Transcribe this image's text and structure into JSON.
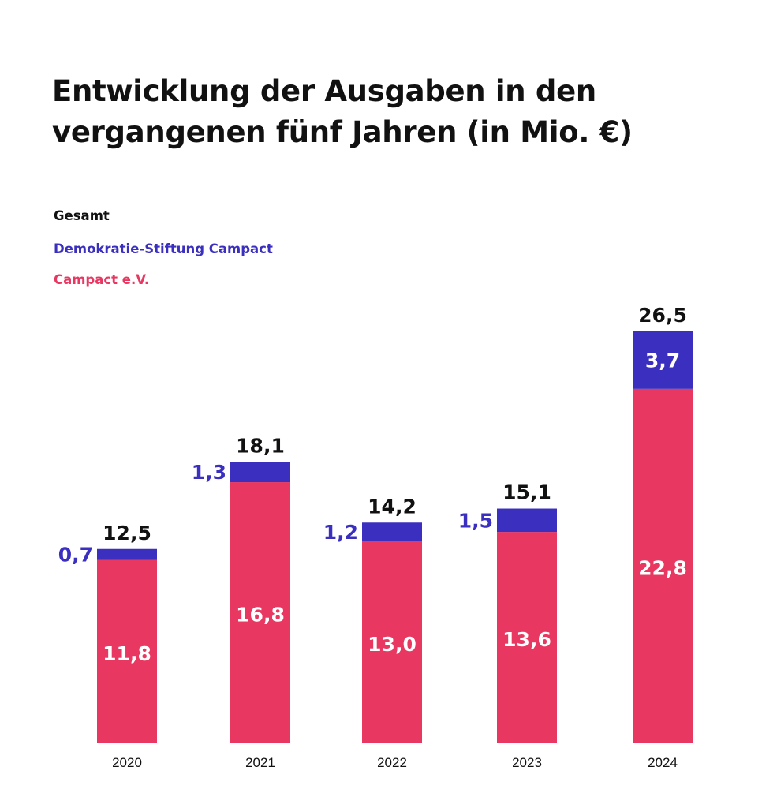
{
  "title_line1": "Entwicklung der Ausgaben in den",
  "title_line2": "vergangenen fünf Jahren (in Mio. €)",
  "legend": [
    {
      "label": "Gesamt",
      "color": "#111111"
    },
    {
      "label": "Demokratie-Stiftung Campact",
      "color": "#3a2fbe"
    },
    {
      "label": "Campact e.V.",
      "color": "#e83862"
    }
  ],
  "chart_data": {
    "type": "bar",
    "stacked": true,
    "categories": [
      "2020",
      "2021",
      "2022",
      "2023",
      "2024"
    ],
    "series": [
      {
        "name": "Campact e.V.",
        "values": [
          11.8,
          16.8,
          13.0,
          13.6,
          22.8
        ],
        "labels": [
          "11,8",
          "16,8",
          "13,0",
          "13,6",
          "22,8"
        ],
        "color": "#e83862"
      },
      {
        "name": "Demokratie-Stiftung Campact",
        "values": [
          0.7,
          1.3,
          1.2,
          1.5,
          3.7
        ],
        "labels": [
          "0,7",
          "1,3",
          "1,2",
          "1,5",
          "3,7"
        ],
        "color": "#3a2fbe"
      }
    ],
    "totals": {
      "name": "Gesamt",
      "values": [
        12.5,
        18.1,
        14.2,
        15.1,
        26.5
      ],
      "labels": [
        "12,5",
        "18,1",
        "14,2",
        "15,1",
        "26,5"
      ]
    },
    "grid": false,
    "legend_position": "top-left"
  }
}
